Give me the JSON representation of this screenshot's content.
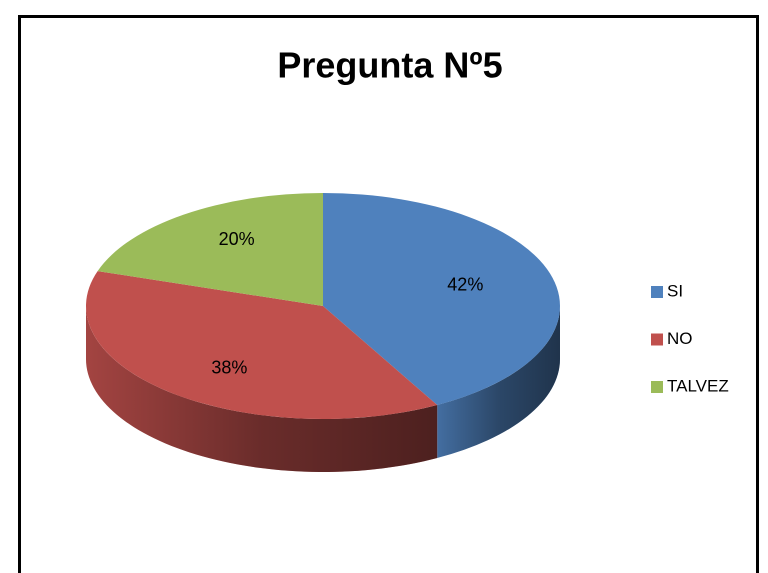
{
  "chart_data": {
    "type": "pie",
    "title": "Pregunta Nº5",
    "categories": [
      "SI",
      "NO",
      "TALVEZ"
    ],
    "values": [
      42,
      38,
      20
    ],
    "value_labels": [
      "42%",
      "38%",
      "20%"
    ],
    "colors": [
      "#4f81bd",
      "#c0504d",
      "#9bbb59"
    ],
    "legend": "right"
  }
}
